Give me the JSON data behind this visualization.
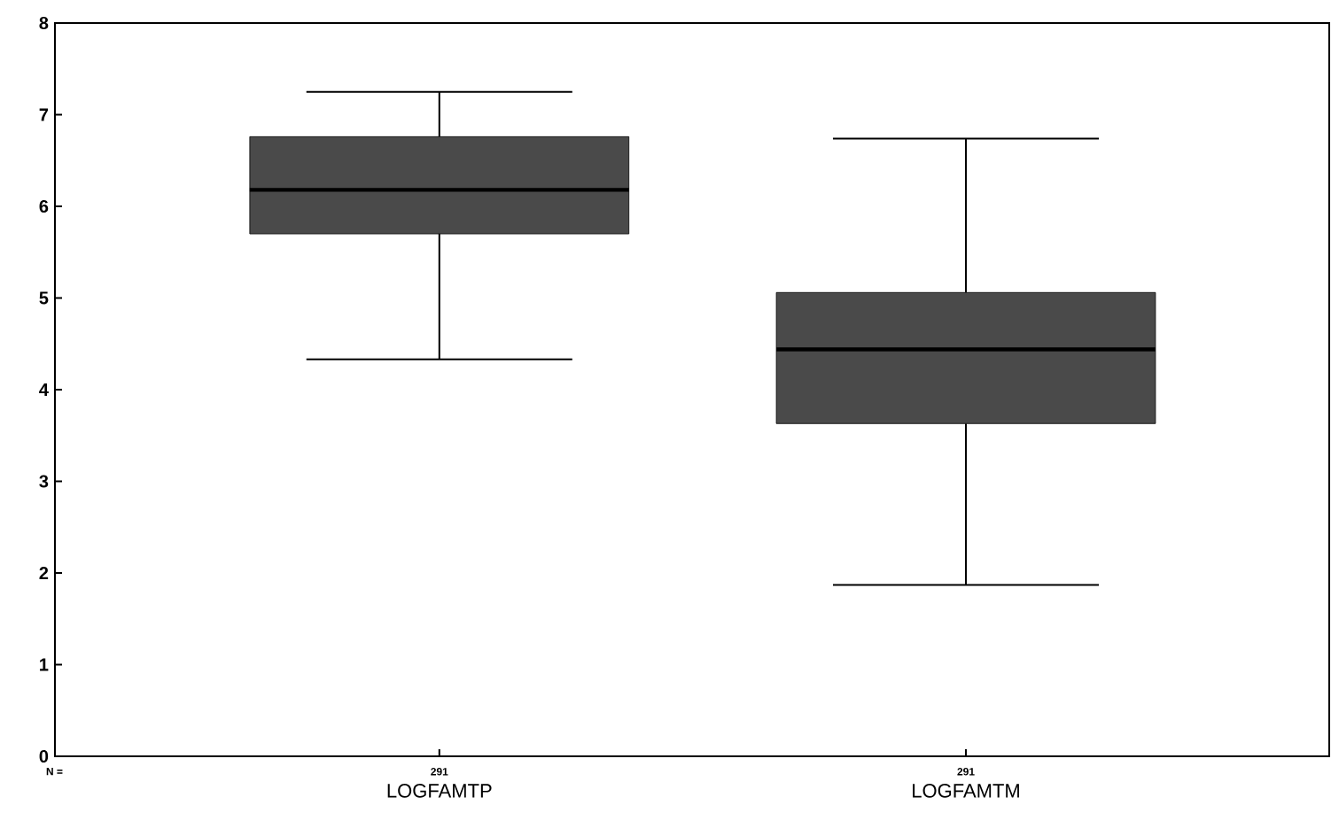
{
  "chart_data": {
    "type": "box",
    "categories": [
      "LOGFAMTP",
      "LOGFAMTM"
    ],
    "series": [
      {
        "color": "#4a4a4a",
        "boxes": [
          {
            "low": 4.33,
            "q1": 5.7,
            "median": 6.18,
            "q3": 6.76,
            "high": 7.25
          },
          {
            "low": 1.87,
            "q1": 3.63,
            "median": 4.44,
            "q3": 5.06,
            "high": 6.74
          }
        ]
      }
    ],
    "ylim": [
      0,
      8
    ],
    "yticks": [
      0,
      1,
      2,
      3,
      4,
      5,
      6,
      7,
      8
    ],
    "grid": false,
    "annotations": [
      "N =",
      "291",
      "291"
    ]
  }
}
